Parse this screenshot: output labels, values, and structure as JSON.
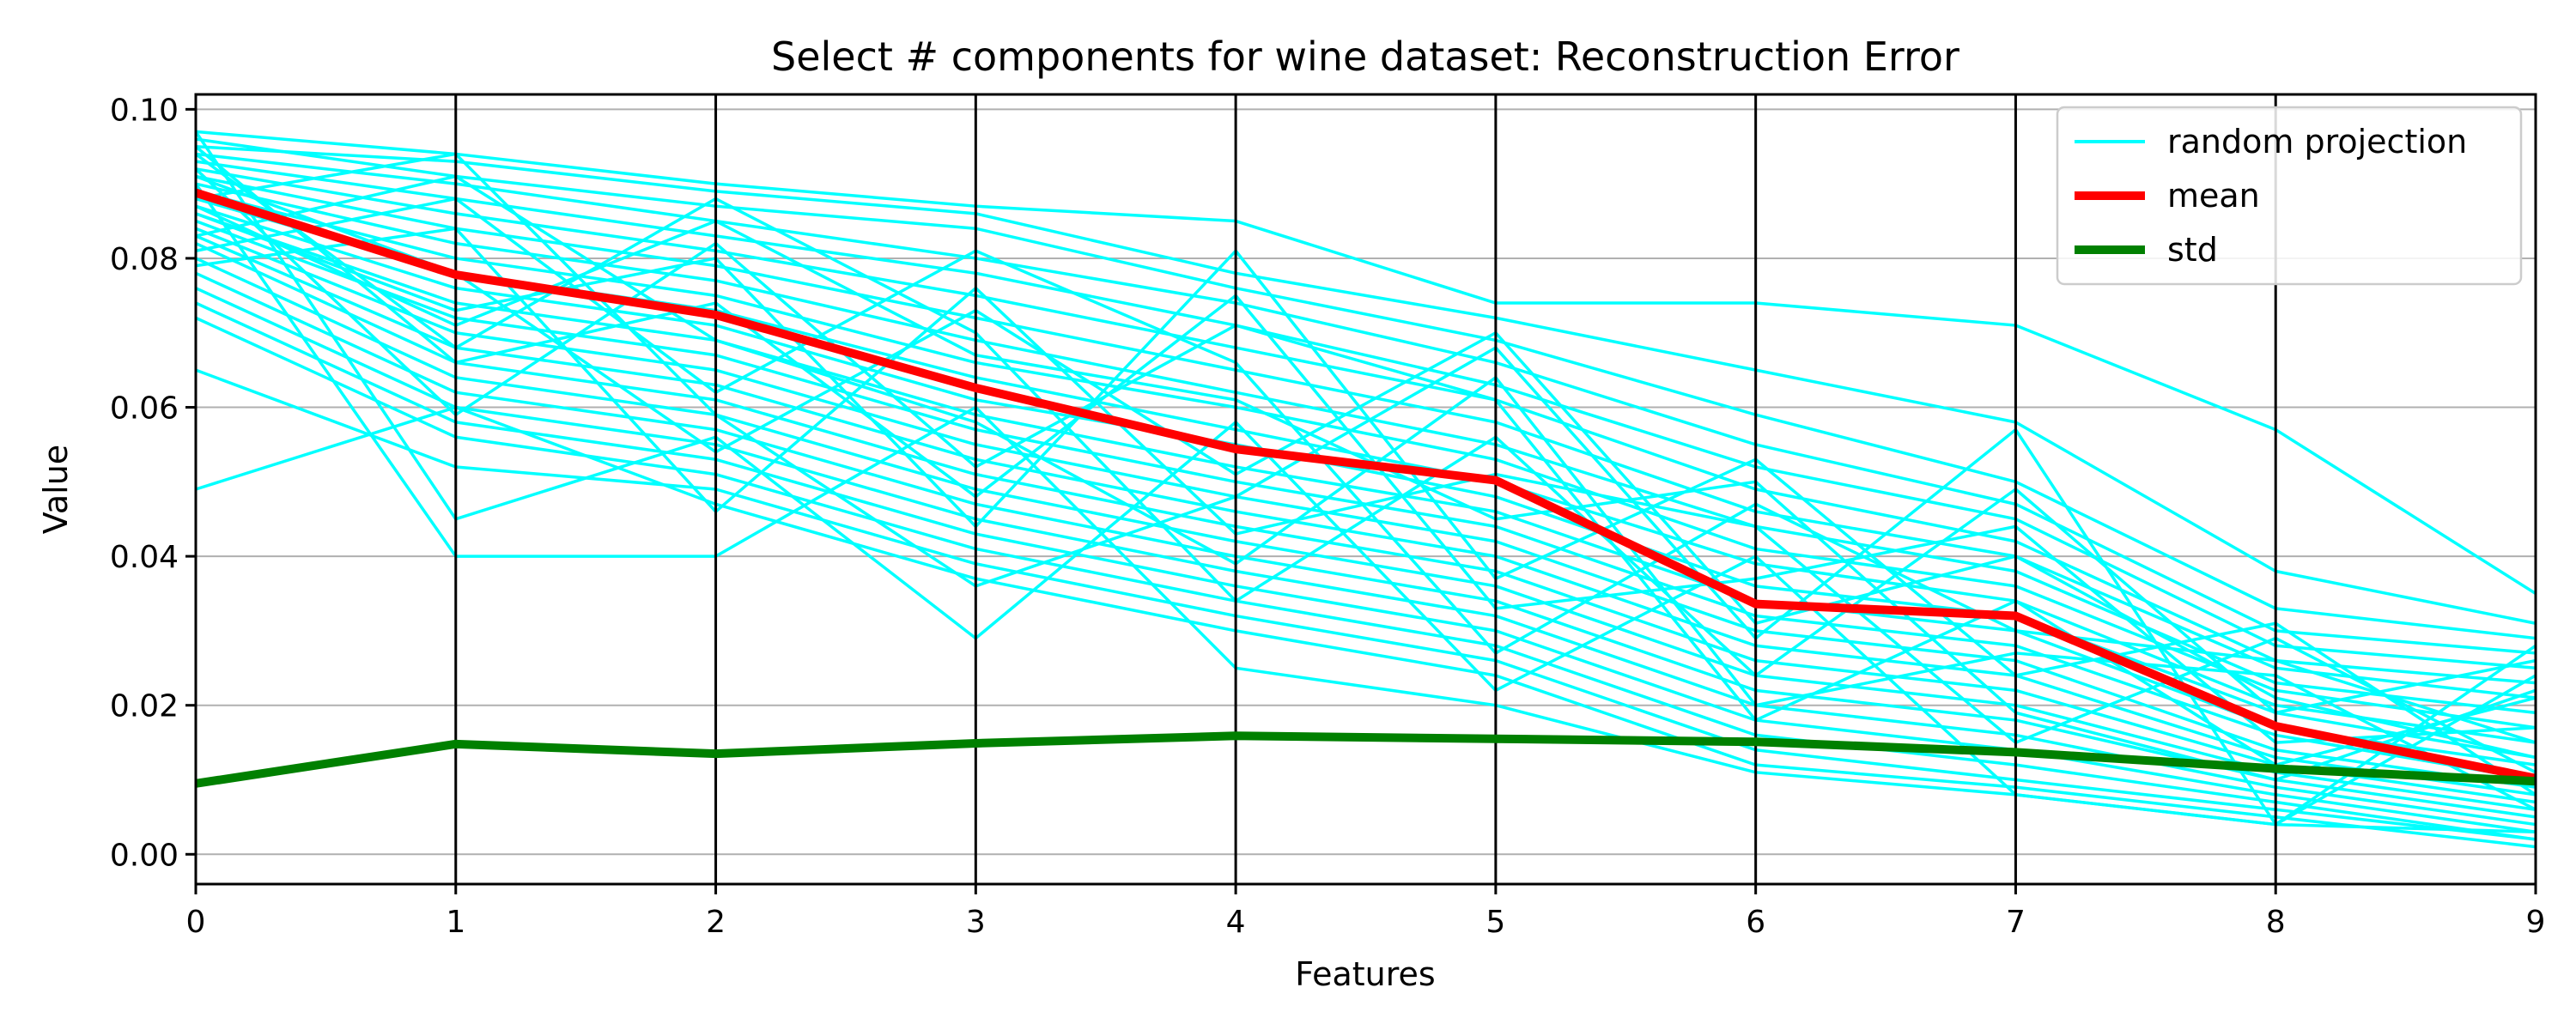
{
  "chart_data": {
    "type": "line",
    "title": "Select # components for wine dataset: Reconstruction Error",
    "xlabel": "Features",
    "ylabel": "Value",
    "x": [
      0,
      1,
      2,
      3,
      4,
      5,
      6,
      7,
      8,
      9
    ],
    "xlim": [
      0,
      9
    ],
    "ylim": [
      -0.004,
      0.102
    ],
    "yticks": [
      0.0,
      0.02,
      0.04,
      0.06,
      0.08,
      0.1
    ],
    "ytick_labels": [
      "0.00",
      "0.02",
      "0.04",
      "0.06",
      "0.08",
      "0.10"
    ],
    "xtick_labels": [
      "0",
      "1",
      "2",
      "3",
      "4",
      "5",
      "6",
      "7",
      "8",
      "9"
    ],
    "grid": "horizontal lines at y ticks; vertical black lines at each feature",
    "legend_position": "top-right",
    "colors": {
      "random": "#00ffff",
      "mean": "#ff0000",
      "std": "#008000",
      "grid": "#b0b0b0",
      "vertical": "#000000"
    },
    "legend": [
      {
        "label": "random projection",
        "color": "#00ffff"
      },
      {
        "label": "mean",
        "color": "#ff0000"
      },
      {
        "label": "std",
        "color": "#008000"
      }
    ],
    "series": [
      {
        "name": "mean",
        "values": [
          0.0888,
          0.0778,
          0.0724,
          0.0626,
          0.0544,
          0.0502,
          0.0336,
          0.032,
          0.0172,
          0.0102
        ]
      },
      {
        "name": "std",
        "values": [
          0.0095,
          0.0148,
          0.0135,
          0.0149,
          0.0159,
          0.0155,
          0.0151,
          0.0137,
          0.0115,
          0.0098
        ]
      }
    ],
    "random_projection_values": [
      [
        0.097,
        0.094,
        0.09,
        0.087,
        0.085,
        0.074,
        0.074,
        0.071,
        0.057,
        0.035
      ],
      [
        0.095,
        0.093,
        0.089,
        0.086,
        0.078,
        0.072,
        0.065,
        0.058,
        0.038,
        0.031
      ],
      [
        0.096,
        0.091,
        0.087,
        0.084,
        0.076,
        0.069,
        0.059,
        0.05,
        0.033,
        0.029
      ],
      [
        0.094,
        0.09,
        0.085,
        0.08,
        0.074,
        0.066,
        0.055,
        0.047,
        0.03,
        0.027
      ],
      [
        0.093,
        0.088,
        0.083,
        0.078,
        0.071,
        0.063,
        0.052,
        0.045,
        0.028,
        0.025
      ],
      [
        0.092,
        0.086,
        0.081,
        0.075,
        0.068,
        0.061,
        0.049,
        0.042,
        0.026,
        0.023
      ],
      [
        0.091,
        0.084,
        0.079,
        0.072,
        0.065,
        0.058,
        0.046,
        0.04,
        0.025,
        0.021
      ],
      [
        0.09,
        0.082,
        0.077,
        0.069,
        0.062,
        0.055,
        0.044,
        0.038,
        0.023,
        0.019
      ],
      [
        0.089,
        0.08,
        0.075,
        0.066,
        0.06,
        0.053,
        0.041,
        0.036,
        0.022,
        0.017
      ],
      [
        0.088,
        0.078,
        0.073,
        0.064,
        0.057,
        0.05,
        0.039,
        0.034,
        0.02,
        0.015
      ],
      [
        0.087,
        0.076,
        0.071,
        0.061,
        0.055,
        0.048,
        0.036,
        0.032,
        0.019,
        0.013
      ],
      [
        0.086,
        0.074,
        0.069,
        0.059,
        0.052,
        0.046,
        0.034,
        0.03,
        0.017,
        0.012
      ],
      [
        0.085,
        0.072,
        0.067,
        0.057,
        0.05,
        0.044,
        0.032,
        0.028,
        0.016,
        0.01
      ],
      [
        0.084,
        0.07,
        0.065,
        0.055,
        0.048,
        0.042,
        0.03,
        0.026,
        0.014,
        0.009
      ],
      [
        0.083,
        0.068,
        0.063,
        0.053,
        0.046,
        0.04,
        0.028,
        0.024,
        0.013,
        0.008
      ],
      [
        0.082,
        0.066,
        0.061,
        0.051,
        0.044,
        0.038,
        0.026,
        0.022,
        0.012,
        0.007
      ],
      [
        0.08,
        0.064,
        0.059,
        0.049,
        0.042,
        0.036,
        0.024,
        0.02,
        0.011,
        0.006
      ],
      [
        0.078,
        0.062,
        0.057,
        0.047,
        0.04,
        0.034,
        0.022,
        0.018,
        0.01,
        0.005
      ],
      [
        0.076,
        0.06,
        0.055,
        0.045,
        0.038,
        0.032,
        0.02,
        0.016,
        0.009,
        0.004
      ],
      [
        0.074,
        0.058,
        0.053,
        0.043,
        0.036,
        0.03,
        0.018,
        0.014,
        0.008,
        0.003
      ],
      [
        0.072,
        0.056,
        0.051,
        0.041,
        0.034,
        0.028,
        0.016,
        0.012,
        0.007,
        0.002
      ],
      [
        0.065,
        0.052,
        0.049,
        0.039,
        0.032,
        0.026,
        0.014,
        0.01,
        0.006,
        0.002
      ],
      [
        0.049,
        0.06,
        0.047,
        0.037,
        0.03,
        0.024,
        0.012,
        0.009,
        0.005,
        0.001
      ],
      [
        0.097,
        0.045,
        0.056,
        0.029,
        0.058,
        0.022,
        0.04,
        0.008,
        0.004,
        0.003
      ],
      [
        0.09,
        0.04,
        0.04,
        0.06,
        0.025,
        0.02,
        0.011,
        0.008,
        0.004,
        0.024
      ],
      [
        0.088,
        0.094,
        0.059,
        0.036,
        0.048,
        0.068,
        0.029,
        0.057,
        0.004,
        0.028
      ],
      [
        0.086,
        0.073,
        0.08,
        0.044,
        0.081,
        0.037,
        0.053,
        0.024,
        0.031,
        0.008
      ],
      [
        0.094,
        0.068,
        0.088,
        0.07,
        0.034,
        0.056,
        0.024,
        0.049,
        0.019,
        0.026
      ],
      [
        0.081,
        0.088,
        0.062,
        0.081,
        0.066,
        0.027,
        0.047,
        0.03,
        0.026,
        0.015
      ],
      [
        0.092,
        0.059,
        0.082,
        0.052,
        0.071,
        0.061,
        0.018,
        0.034,
        0.012,
        0.021
      ],
      [
        0.079,
        0.084,
        0.046,
        0.076,
        0.043,
        0.051,
        0.044,
        0.015,
        0.029,
        0.011
      ],
      [
        0.095,
        0.066,
        0.074,
        0.048,
        0.075,
        0.033,
        0.037,
        0.044,
        0.015,
        0.017
      ],
      [
        0.083,
        0.091,
        0.069,
        0.058,
        0.039,
        0.064,
        0.02,
        0.027,
        0.024,
        0.006
      ],
      [
        0.087,
        0.071,
        0.085,
        0.067,
        0.061,
        0.045,
        0.05,
        0.019,
        0.01,
        0.022
      ],
      [
        0.091,
        0.078,
        0.054,
        0.073,
        0.051,
        0.07,
        0.031,
        0.04,
        0.021,
        0.013
      ]
    ]
  }
}
